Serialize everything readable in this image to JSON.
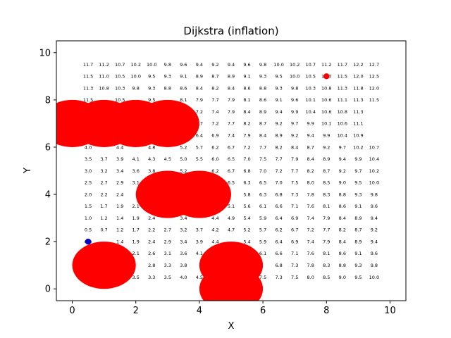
{
  "chart_data": {
    "type": "scatter",
    "title": "Dijkstra (inflation)",
    "xlabel": "X",
    "ylabel": "Y",
    "xlim": [
      -0.5,
      10.5
    ],
    "ylim": [
      -0.5,
      10.5
    ],
    "xticks": [
      0,
      2,
      4,
      6,
      8,
      10
    ],
    "yticks": [
      0,
      2,
      4,
      6,
      8,
      10
    ],
    "grid": false,
    "colors": {
      "obstacle": "#ff0000",
      "start": "#0000cc",
      "goal": "#ff0000"
    },
    "obstacles": [
      {
        "x": 0,
        "y": 7,
        "r": 1
      },
      {
        "x": 1,
        "y": 7,
        "r": 1
      },
      {
        "x": 2,
        "y": 7,
        "r": 1
      },
      {
        "x": 3,
        "y": 7,
        "r": 1
      },
      {
        "x": 3,
        "y": 4,
        "r": 1
      },
      {
        "x": 4,
        "y": 4,
        "r": 1
      },
      {
        "x": 1,
        "y": 1,
        "r": 1
      },
      {
        "x": 5,
        "y": 1,
        "r": 1
      },
      {
        "x": 5,
        "y": 0,
        "r": 1
      }
    ],
    "start": {
      "x": 0.5,
      "y": 2
    },
    "goal": {
      "x": 8,
      "y": 9
    },
    "cost_grid": {
      "x_start": 0.5,
      "x_step": 0.5,
      "y_start": 0.5,
      "y_step": 0.5,
      "rows": [
        {
          "y": 9.5,
          "values": [
            "11.7",
            "11.2",
            "10.7",
            "10.2",
            "10.0",
            "9.8",
            "9.6",
            "9.4",
            "9.2",
            "9.4",
            "9.6",
            "9.8",
            "10.0",
            "10.2",
            "10.7",
            "11.2",
            "11.7",
            "12.2",
            "12.7"
          ]
        },
        {
          "y": 9.0,
          "values": [
            "11.5",
            "11.0",
            "10.5",
            "10.0",
            "9.5",
            "9.3",
            "9.1",
            "8.9",
            "8.7",
            "8.9",
            "9.1",
            "9.3",
            "9.5",
            "10.0",
            "10.5",
            "11.0",
            "11.5",
            "12.0",
            "12.5"
          ]
        },
        {
          "y": 8.5,
          "values": [
            "11.3",
            "10.8",
            "10.3",
            "9.8",
            "9.3",
            "8.8",
            "8.6",
            "8.4",
            "8.2",
            "8.4",
            "8.6",
            "8.8",
            "9.3",
            "9.8",
            "10.3",
            "10.8",
            "11.3",
            "11.8",
            "12.0"
          ]
        },
        {
          "y": 8.0,
          "values": [
            "11.5",
            "",
            "10.5",
            "",
            "9.5",
            "",
            "8.1",
            "7.9",
            "7.7",
            "7.9",
            "8.1",
            "8.6",
            "9.1",
            "9.6",
            "10.1",
            "10.6",
            "11.1",
            "11.3",
            "11.5"
          ]
        },
        {
          "y": 7.5,
          "values": [
            "",
            "",
            "",
            "",
            "",
            "",
            "7.4",
            "7.2",
            "7.4",
            "7.9",
            "8.4",
            "8.9",
            "9.4",
            "9.9",
            "10.4",
            "10.6",
            "10.8",
            "11.3",
            ""
          ]
        },
        {
          "y": 7.0,
          "values": [
            "",
            "",
            "",
            "",
            "",
            "",
            "",
            "6.7",
            "7.2",
            "7.7",
            "8.2",
            "8.7",
            "9.2",
            "9.7",
            "9.9",
            "10.1",
            "10.6",
            "11.1",
            ""
          ]
        },
        {
          "y": 6.5,
          "values": [
            "",
            "",
            "",
            "",
            "",
            "",
            "5.9",
            "6.4",
            "6.9",
            "7.4",
            "7.9",
            "8.4",
            "8.9",
            "9.2",
            "9.4",
            "9.9",
            "10.4",
            "10.9",
            ""
          ]
        },
        {
          "y": 6.0,
          "values": [
            "4.0",
            "",
            "4.4",
            "",
            "4.8",
            "",
            "5.2",
            "5.7",
            "6.2",
            "6.7",
            "7.2",
            "7.7",
            "8.2",
            "8.4",
            "8.7",
            "9.2",
            "9.7",
            "10.2",
            "10.7"
          ]
        },
        {
          "y": 5.5,
          "values": [
            "3.5",
            "3.7",
            "3.9",
            "4.1",
            "4.3",
            "4.5",
            "5.0",
            "5.5",
            "6.0",
            "6.5",
            "7.0",
            "7.5",
            "7.7",
            "7.9",
            "8.4",
            "8.9",
            "9.4",
            "9.9",
            "10.4"
          ]
        },
        {
          "y": 5.0,
          "values": [
            "3.0",
            "3.2",
            "3.4",
            "3.6",
            "3.8",
            "",
            "5.2",
            "",
            "6.2",
            "6.7",
            "6.8",
            "7.0",
            "7.2",
            "7.7",
            "8.2",
            "8.7",
            "9.2",
            "9.7",
            "10.2"
          ]
        },
        {
          "y": 4.5,
          "values": [
            "2.5",
            "2.7",
            "2.9",
            "3.1",
            "",
            "",
            "",
            "",
            "",
            "6.5",
            "6.3",
            "6.5",
            "7.0",
            "7.5",
            "8.0",
            "8.5",
            "9.0",
            "9.5",
            "10.0"
          ]
        },
        {
          "y": 4.0,
          "values": [
            "2.0",
            "2.2",
            "2.4",
            "",
            "",
            "",
            "",
            "",
            "",
            "",
            "5.8",
            "6.3",
            "6.8",
            "7.3",
            "7.8",
            "8.3",
            "8.8",
            "9.3",
            "9.8"
          ]
        },
        {
          "y": 3.5,
          "values": [
            "1.5",
            "1.7",
            "1.9",
            "2.1",
            "",
            "",
            "",
            "",
            "",
            "5.1",
            "5.6",
            "6.1",
            "6.6",
            "7.1",
            "7.6",
            "8.1",
            "8.6",
            "9.1",
            "9.6"
          ]
        },
        {
          "y": 3.0,
          "values": [
            "1.0",
            "1.2",
            "1.4",
            "1.9",
            "2.4",
            "",
            "3.4",
            "",
            "4.4",
            "4.9",
            "5.4",
            "5.9",
            "6.4",
            "6.9",
            "7.4",
            "7.9",
            "8.4",
            "8.9",
            "9.4"
          ]
        },
        {
          "y": 2.5,
          "values": [
            "0.5",
            "0.7",
            "1.2",
            "1.7",
            "2.2",
            "2.7",
            "3.2",
            "3.7",
            "4.2",
            "4.7",
            "5.2",
            "5.7",
            "6.2",
            "6.7",
            "7.2",
            "7.7",
            "8.2",
            "8.7",
            "9.2"
          ]
        },
        {
          "y": 2.0,
          "values": [
            "0.0",
            "",
            "1.4",
            "1.9",
            "2.4",
            "2.9",
            "3.4",
            "3.9",
            "4.4",
            "",
            "5.4",
            "5.9",
            "6.4",
            "6.9",
            "7.4",
            "7.9",
            "8.4",
            "8.9",
            "9.4"
          ]
        },
        {
          "y": 1.5,
          "values": [
            "",
            "",
            "",
            "2.1",
            "2.6",
            "3.1",
            "3.6",
            "4.1",
            "",
            "",
            "",
            "6.1",
            "6.6",
            "7.1",
            "7.6",
            "8.1",
            "8.6",
            "9.1",
            "9.6"
          ]
        },
        {
          "y": 1.0,
          "values": [
            "",
            "",
            "",
            "",
            "2.8",
            "3.3",
            "3.8",
            "",
            "",
            "",
            "",
            "",
            "6.8",
            "7.3",
            "7.8",
            "8.3",
            "8.8",
            "9.3",
            "9.8"
          ]
        },
        {
          "y": 0.5,
          "values": [
            "",
            "",
            "",
            "3.5",
            "3.3",
            "3.5",
            "4.0",
            "4.5",
            "",
            "",
            "",
            "7.5",
            "7.3",
            "7.5",
            "8.0",
            "8.5",
            "9.0",
            "9.5",
            "10.0"
          ]
        }
      ]
    }
  }
}
